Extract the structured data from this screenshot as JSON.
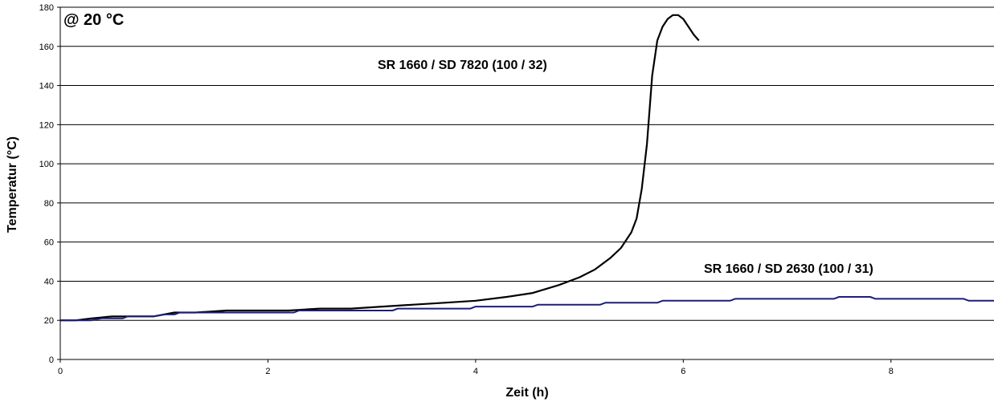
{
  "chart_data": {
    "type": "line",
    "title": "",
    "xlabel": "Zeit (h)",
    "ylabel": "Temperatur (°C)",
    "xlim": [
      0,
      9
    ],
    "ylim": [
      0,
      180
    ],
    "xticks": [
      0,
      2,
      4,
      6,
      8
    ],
    "yticks": [
      0,
      20,
      40,
      60,
      80,
      100,
      120,
      140,
      160,
      180
    ],
    "grid": "horizontal",
    "legend": "none",
    "annotations": [
      {
        "text": "@ 20 °C"
      },
      {
        "text": "SR 1660 / SD 7820 (100 / 32)"
      },
      {
        "text": "SR 1660 / SD 2630 (100 / 31)"
      }
    ],
    "series": [
      {
        "name": "SR 1660 / SD 7820 (100 / 32)",
        "color": "#000000",
        "x": [
          0,
          0.15,
          0.3,
          0.5,
          0.7,
          0.9,
          1.1,
          1.3,
          1.6,
          1.9,
          2.2,
          2.5,
          2.8,
          3.1,
          3.4,
          3.7,
          4.0,
          4.3,
          4.55,
          4.8,
          5.0,
          5.15,
          5.3,
          5.4,
          5.5,
          5.55,
          5.6,
          5.65,
          5.7,
          5.75,
          5.8,
          5.85,
          5.9,
          5.95,
          6.0,
          6.05,
          6.1,
          6.15
        ],
        "y": [
          20,
          20,
          21,
          22,
          22,
          22,
          24,
          24,
          25,
          25,
          25,
          26,
          26,
          27,
          28,
          29,
          30,
          32,
          34,
          38,
          42,
          46,
          52,
          57,
          65,
          72,
          87,
          110,
          145,
          163,
          170,
          174,
          176,
          176,
          174,
          170,
          166,
          163
        ]
      },
      {
        "name": "SR 1660 / SD 2630 (100 / 31)",
        "color": "#1b1f7a",
        "x": [
          0,
          0.3,
          0.4,
          0.6,
          0.65,
          0.9,
          1.0,
          1.1,
          1.15,
          1.5,
          1.55,
          2.0,
          2.25,
          2.3,
          3.2,
          3.25,
          3.95,
          4.0,
          4.55,
          4.6,
          5.2,
          5.25,
          5.75,
          5.8,
          6.45,
          6.5,
          7.45,
          7.5,
          7.8,
          7.85,
          8.65,
          8.7,
          8.75,
          9.0
        ],
        "y": [
          20,
          20,
          21,
          21,
          22,
          22,
          23,
          23,
          24,
          24,
          24,
          24,
          24,
          25,
          25,
          26,
          26,
          27,
          27,
          28,
          28,
          29,
          29,
          30,
          30,
          31,
          31,
          32,
          32,
          31,
          31,
          31,
          30,
          30
        ]
      }
    ]
  }
}
